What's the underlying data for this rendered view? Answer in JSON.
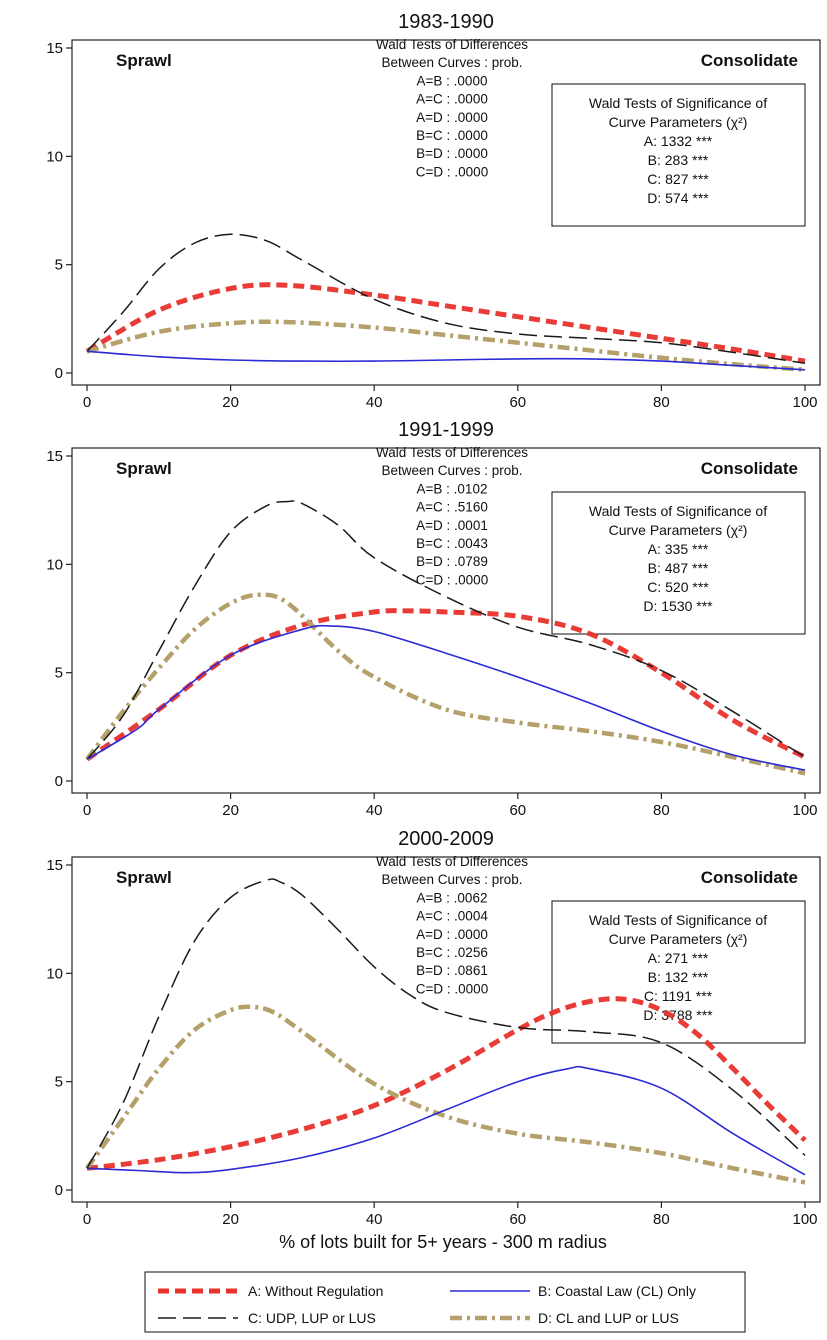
{
  "figure": {
    "xlabel": "% of lots built for 5+ years - 300 m radius"
  },
  "colors": {
    "A": "#e8322b",
    "B": "#2a2ad6",
    "C": "#1a1a1a",
    "D": "#b4a06a"
  },
  "legend": {
    "placement": "bottom",
    "entries": [
      {
        "key": "A",
        "label": "A: Without Regulation"
      },
      {
        "key": "B",
        "label": "B: Coastal Law (CL) Only"
      },
      {
        "key": "C",
        "label": "C: UDP, LUP or LUS"
      },
      {
        "key": "D",
        "label": "D: CL and LUP or LUS"
      }
    ]
  },
  "chart_data": [
    {
      "type": "line",
      "title": "1983-1990",
      "left_label": "Sprawl",
      "right_label": "Consolidate",
      "xlim": [
        0,
        100
      ],
      "ylim": [
        0,
        15
      ],
      "xticks": [
        0,
        20,
        40,
        60,
        80,
        100
      ],
      "yticks": [
        0,
        5,
        10,
        15
      ],
      "grid": false,
      "diff_tests": {
        "title": [
          "Wald Tests of Differences",
          "Between Curves : prob."
        ],
        "rows": [
          "A=B : .0000",
          "A=C : .0000",
          "A=D : .0000",
          "B=C : .0000",
          "B=D : .0000",
          "C=D : .0000"
        ]
      },
      "sig_tests": {
        "title": [
          "Wald Tests of Significance of",
          "Curve Parameters (χ²)"
        ],
        "rows": [
          "A: 1332 ***",
          "B: 283 ***",
          "C: 827 ***",
          "D: 574 ***"
        ]
      },
      "series": [
        {
          "key": "A",
          "x": [
            0,
            10,
            20,
            28,
            40,
            50,
            60,
            70,
            80,
            90,
            100
          ],
          "y": [
            1,
            2.9,
            3.9,
            4.05,
            3.6,
            3.1,
            2.6,
            2.1,
            1.6,
            1.1,
            0.55
          ]
        },
        {
          "key": "B",
          "x": [
            0,
            10,
            20,
            30,
            40,
            50,
            60,
            70,
            80,
            90,
            100
          ],
          "y": [
            1,
            0.75,
            0.6,
            0.55,
            0.55,
            0.6,
            0.65,
            0.65,
            0.55,
            0.35,
            0.15
          ]
        },
        {
          "key": "C",
          "x": [
            0,
            5,
            10,
            15,
            20,
            25,
            30,
            40,
            50,
            60,
            70,
            80,
            90,
            100
          ],
          "y": [
            1,
            2.8,
            4.8,
            6.0,
            6.4,
            6.1,
            5.2,
            3.4,
            2.3,
            1.8,
            1.6,
            1.4,
            0.95,
            0.45
          ]
        },
        {
          "key": "D",
          "x": [
            0,
            10,
            20,
            28,
            40,
            50,
            60,
            70,
            80,
            90,
            100
          ],
          "y": [
            1,
            1.9,
            2.3,
            2.35,
            2.1,
            1.75,
            1.4,
            1.05,
            0.7,
            0.4,
            0.15
          ]
        }
      ]
    },
    {
      "type": "line",
      "title": "1991-1999",
      "left_label": "Sprawl",
      "right_label": "Consolidate",
      "xlim": [
        0,
        100
      ],
      "ylim": [
        0,
        15
      ],
      "xticks": [
        0,
        20,
        40,
        60,
        80,
        100
      ],
      "yticks": [
        0,
        5,
        10,
        15
      ],
      "grid": false,
      "diff_tests": {
        "title": [
          "Wald Tests of Differences",
          "Between Curves : prob."
        ],
        "rows": [
          "A=B : .0102",
          "A=C : .5160",
          "A=D : .0001",
          "B=C : .0043",
          "B=D : .0789",
          "C=D : .0000"
        ]
      },
      "sig_tests": {
        "title": [
          "Wald Tests of Significance of",
          "Curve Parameters (χ²)"
        ],
        "rows": [
          "A: 335 ***",
          "B: 487 ***",
          "C: 520 ***",
          "D: 1530 ***"
        ]
      },
      "series": [
        {
          "key": "A",
          "x": [
            0,
            10,
            20,
            30,
            40,
            45,
            50,
            60,
            70,
            80,
            90,
            100
          ],
          "y": [
            1,
            3.3,
            5.8,
            7.2,
            7.8,
            7.85,
            7.8,
            7.6,
            6.8,
            5.0,
            2.8,
            1.1
          ]
        },
        {
          "key": "B",
          "x": [
            0,
            7,
            10,
            20,
            30,
            34,
            40,
            50,
            60,
            70,
            80,
            90,
            100
          ],
          "y": [
            1,
            2.4,
            3.3,
            5.8,
            7.0,
            7.15,
            6.9,
            5.9,
            4.8,
            3.6,
            2.3,
            1.2,
            0.5
          ]
        },
        {
          "key": "C",
          "x": [
            0,
            5,
            10,
            15,
            20,
            25,
            28,
            30,
            35,
            40,
            50,
            60,
            70,
            80,
            90,
            100
          ],
          "y": [
            1,
            3.0,
            6.0,
            9.0,
            11.5,
            12.7,
            12.9,
            12.8,
            11.8,
            10.3,
            8.5,
            7.1,
            6.3,
            5.1,
            3.2,
            1.1
          ]
        },
        {
          "key": "D",
          "x": [
            0,
            5,
            10,
            15,
            20,
            24,
            28,
            35,
            40,
            50,
            60,
            70,
            80,
            90,
            100
          ],
          "y": [
            1,
            3.2,
            5.2,
            7.0,
            8.2,
            8.6,
            8.2,
            6.0,
            4.8,
            3.3,
            2.7,
            2.3,
            1.8,
            1.1,
            0.35
          ]
        }
      ]
    },
    {
      "type": "line",
      "title": "2000-2009",
      "left_label": "Sprawl",
      "right_label": "Consolidate",
      "xlim": [
        0,
        100
      ],
      "ylim": [
        0,
        15
      ],
      "xticks": [
        0,
        20,
        40,
        60,
        80,
        100
      ],
      "yticks": [
        0,
        5,
        10,
        15
      ],
      "grid": false,
      "diff_tests": {
        "title": [
          "Wald Tests of Differences",
          "Between Curves : prob."
        ],
        "rows": [
          "A=B : .0062",
          "A=C : .0004",
          "A=D : .0000",
          "B=C : .0256",
          "B=D : .0861",
          "C=D : .0000"
        ]
      },
      "sig_tests": {
        "title": [
          "Wald Tests of Significance of",
          "Curve Parameters (χ²)"
        ],
        "rows": [
          "A: 271 ***",
          "B: 132 ***",
          "C: 1191 ***",
          "D: 3788 ***"
        ]
      },
      "series": [
        {
          "key": "A",
          "x": [
            0,
            10,
            20,
            30,
            40,
            50,
            60,
            65,
            70,
            75,
            80,
            85,
            90,
            95,
            100
          ],
          "y": [
            1,
            1.4,
            2.0,
            2.8,
            3.9,
            5.5,
            7.4,
            8.2,
            8.7,
            8.8,
            8.3,
            7.2,
            5.6,
            3.9,
            2.3
          ]
        },
        {
          "key": "B",
          "x": [
            0,
            7,
            14,
            20,
            30,
            40,
            50,
            60,
            67,
            70,
            80,
            90,
            100
          ],
          "y": [
            1,
            0.9,
            0.8,
            0.95,
            1.5,
            2.4,
            3.7,
            5.0,
            5.6,
            5.6,
            4.7,
            2.6,
            0.7
          ]
        },
        {
          "key": "C",
          "x": [
            0,
            5,
            10,
            15,
            20,
            25,
            27,
            30,
            35,
            40,
            45,
            50,
            60,
            70,
            80,
            90,
            100
          ],
          "y": [
            1,
            4.0,
            8.0,
            11.5,
            13.5,
            14.3,
            14.2,
            13.6,
            12.0,
            10.3,
            9.0,
            8.2,
            7.5,
            7.3,
            6.8,
            4.6,
            1.6
          ]
        },
        {
          "key": "D",
          "x": [
            0,
            5,
            10,
            15,
            20,
            23,
            26,
            30,
            40,
            50,
            60,
            70,
            80,
            90,
            100
          ],
          "y": [
            1,
            3.3,
            5.6,
            7.4,
            8.3,
            8.45,
            8.2,
            7.3,
            4.9,
            3.4,
            2.6,
            2.2,
            1.7,
            1.0,
            0.35
          ]
        }
      ]
    }
  ]
}
